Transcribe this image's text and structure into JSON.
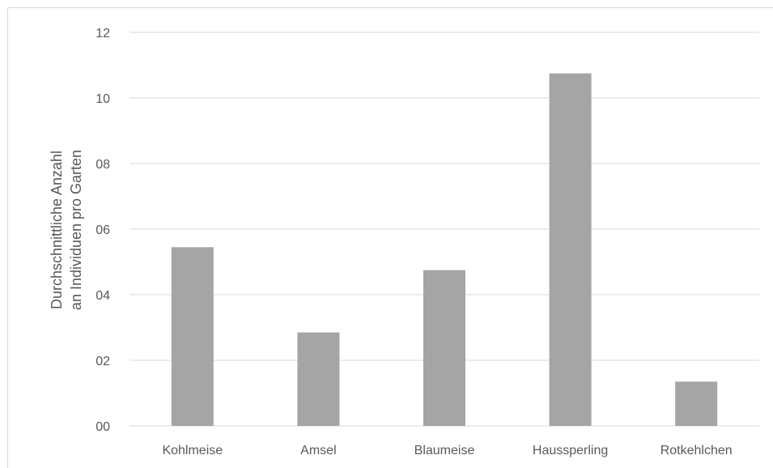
{
  "chart_data": {
    "type": "bar",
    "categories": [
      "Kohlmeise",
      "Amsel",
      "Blaumeise",
      "Haussperling",
      "Rotkehlchen"
    ],
    "values": [
      5.45,
      2.85,
      4.75,
      10.75,
      1.35
    ],
    "ylabel_line1": "Durchschnittliche Anzahl",
    "ylabel_line2": "an Individuen pro Garten",
    "ylim": [
      0,
      12
    ],
    "yticks": [
      0,
      2,
      4,
      6,
      8,
      10,
      12
    ],
    "ytick_labels": [
      "00",
      "02",
      "04",
      "06",
      "08",
      "10",
      "12"
    ],
    "grid": true,
    "bar_color": "#a5a5a5",
    "grid_color": "#d9d9d9"
  }
}
